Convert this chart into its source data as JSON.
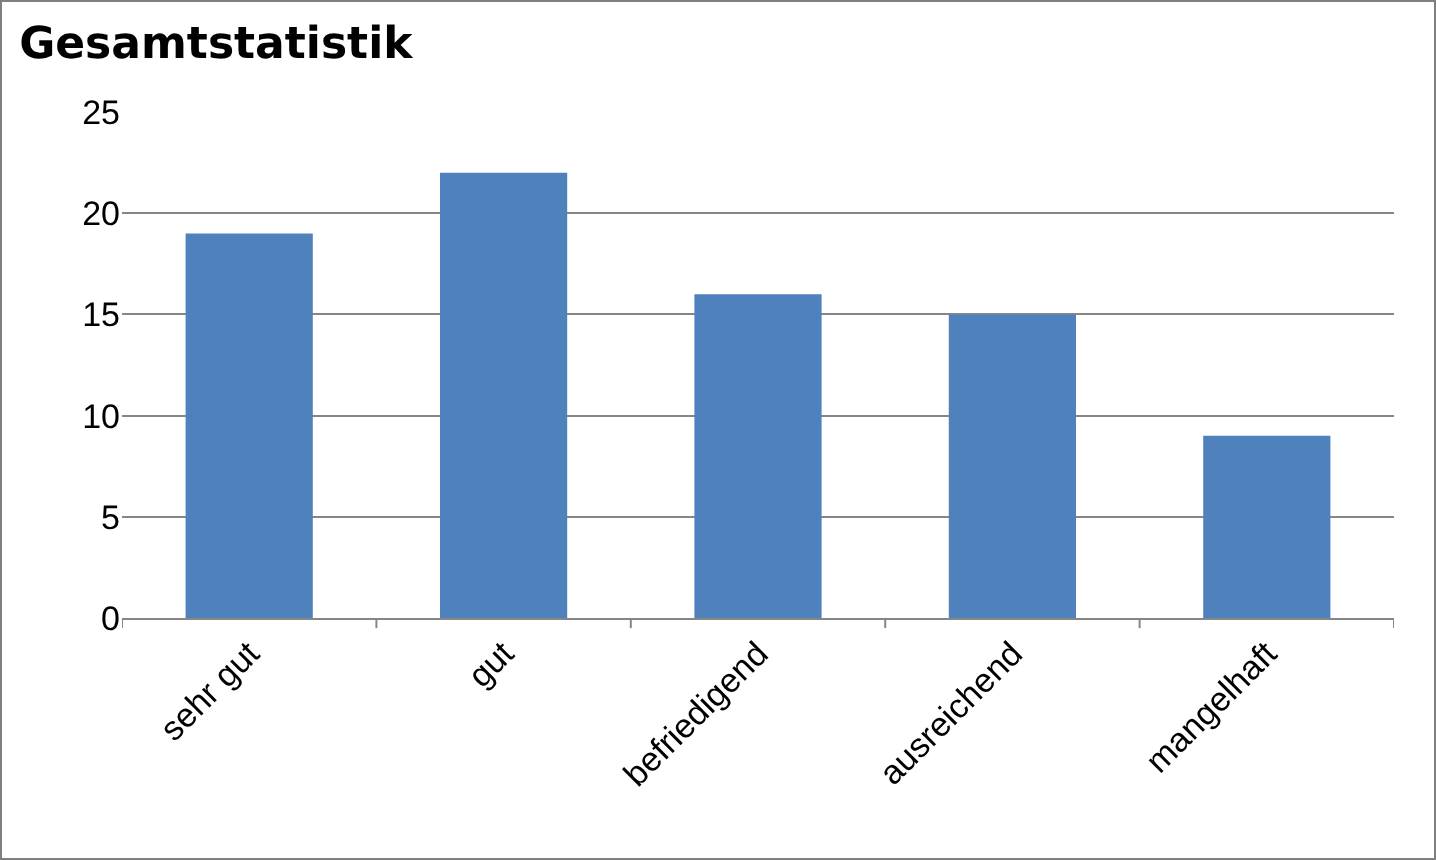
{
  "chart_data": {
    "type": "bar",
    "title": "Gesamtstatistik",
    "categories": [
      "sehr gut",
      "gut",
      "befriedigend",
      "ausreichend",
      "mangelhaft"
    ],
    "values": [
      19,
      22,
      16,
      15,
      9
    ],
    "color": "#4f81bd",
    "ylim": [
      0,
      25
    ],
    "yticks": [
      0,
      5,
      10,
      15,
      20,
      25
    ],
    "grid": "y"
  }
}
